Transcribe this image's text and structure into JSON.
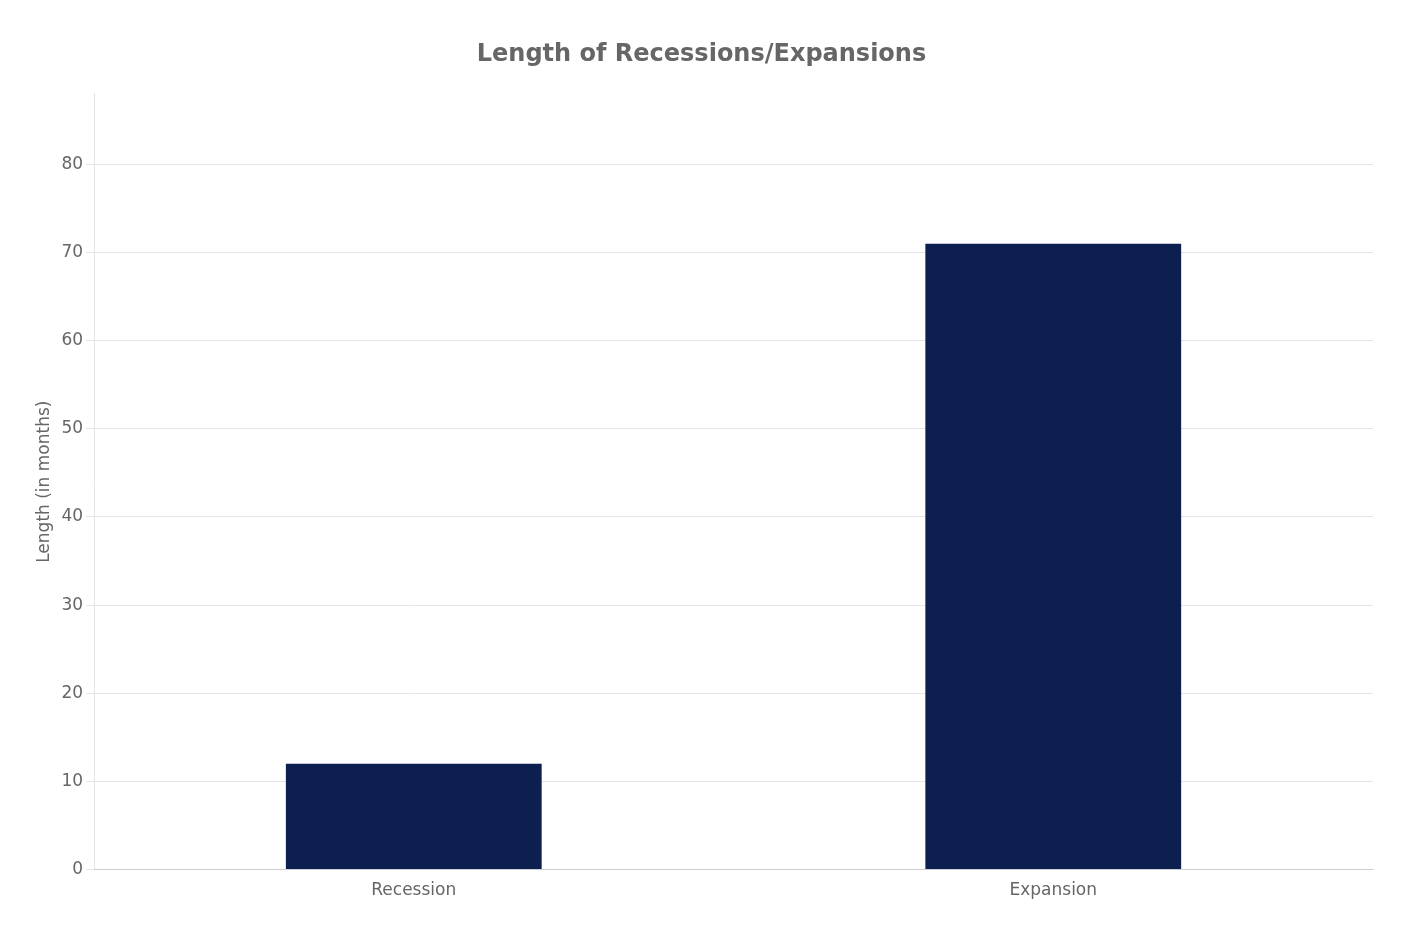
{
  "chart_data": {
    "type": "bar",
    "title": "Length of Recessions/Expansions",
    "ylabel": "Length (in months)",
    "categories": [
      "Recession",
      "Expansion"
    ],
    "values": [
      12,
      71
    ],
    "color": "#0d1f4e",
    "ylim": [
      0,
      88
    ],
    "yticks": [
      0,
      10,
      20,
      30,
      40,
      50,
      60,
      70,
      80
    ],
    "grid": true
  }
}
